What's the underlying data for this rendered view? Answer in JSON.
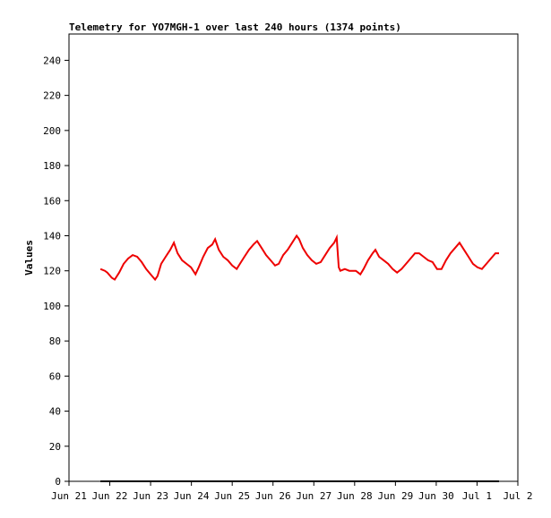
{
  "chart_data": {
    "type": "line",
    "title": "Telemetry for YO7MGH-1 over last 240 hours (1374 points)",
    "y_label": "Values",
    "xlim": [
      0,
      11
    ],
    "xticks": [
      {
        "value": 0,
        "label": "Jun 21"
      },
      {
        "value": 1,
        "label": "Jun 22"
      },
      {
        "value": 2,
        "label": "Jun 23"
      },
      {
        "value": 3,
        "label": "Jun 24"
      },
      {
        "value": 4,
        "label": "Jun 25"
      },
      {
        "value": 5,
        "label": "Jun 26"
      },
      {
        "value": 6,
        "label": "Jun 27"
      },
      {
        "value": 7,
        "label": "Jun 28"
      },
      {
        "value": 8,
        "label": "Jun 29"
      },
      {
        "value": 9,
        "label": "Jun 30"
      },
      {
        "value": 10,
        "label": "Jul 1"
      },
      {
        "value": 11,
        "label": "Jul 2"
      }
    ],
    "ylim": [
      0,
      255
    ],
    "yticks": [
      0,
      20,
      40,
      60,
      80,
      100,
      120,
      140,
      160,
      180,
      200,
      220,
      240
    ],
    "series": [
      {
        "color": "#ee0000",
        "x": [
          0.77,
          0.88,
          0.94,
          1.05,
          1.12,
          1.23,
          1.34,
          1.45,
          1.56,
          1.67,
          1.78,
          1.89,
          2.0,
          2.11,
          2.17,
          2.26,
          2.37,
          2.48,
          2.57,
          2.66,
          2.77,
          2.88,
          2.99,
          3.1,
          3.18,
          3.29,
          3.4,
          3.51,
          3.58,
          3.67,
          3.78,
          3.89,
          4.0,
          4.11,
          4.19,
          4.3,
          4.41,
          4.52,
          4.61,
          4.72,
          4.83,
          4.94,
          5.05,
          5.14,
          5.25,
          5.36,
          5.47,
          5.58,
          5.64,
          5.73,
          5.84,
          5.95,
          6.06,
          6.17,
          6.28,
          6.39,
          6.5,
          6.56,
          6.61,
          6.65,
          6.76,
          6.87,
          7.03,
          7.14,
          7.22,
          7.33,
          7.44,
          7.51,
          7.6,
          7.71,
          7.82,
          7.93,
          8.04,
          8.15,
          8.26,
          8.37,
          8.48,
          8.58,
          8.69,
          8.8,
          8.91,
          9.02,
          9.13,
          9.24,
          9.35,
          9.46,
          9.57,
          9.68,
          9.79,
          9.9,
          10.01,
          10.12,
          10.23,
          10.34,
          10.45,
          10.54
        ],
        "values": [
          121,
          120,
          119,
          116,
          115,
          119,
          124,
          127,
          129,
          128,
          125,
          121,
          118,
          115,
          117,
          124,
          128,
          132,
          136,
          130,
          126,
          124,
          122,
          118,
          122,
          128,
          133,
          135,
          138,
          132,
          128,
          126,
          123,
          121,
          124,
          128,
          132,
          135,
          137,
          133,
          129,
          126,
          123,
          124,
          129,
          132,
          136,
          140,
          138,
          133,
          129,
          126,
          124,
          125,
          129,
          133,
          136,
          139,
          122,
          120,
          121,
          120,
          120,
          118,
          121,
          126,
          130,
          132,
          128,
          126,
          124,
          121,
          119,
          121,
          124,
          127,
          130,
          130,
          128,
          126,
          125,
          121,
          121,
          126,
          130,
          133,
          136,
          132,
          128,
          124,
          122,
          121,
          124,
          127,
          130,
          130
        ]
      },
      {
        "color": "#000000",
        "x": [
          0.77,
          10.54
        ],
        "values": [
          0,
          0
        ]
      }
    ]
  }
}
